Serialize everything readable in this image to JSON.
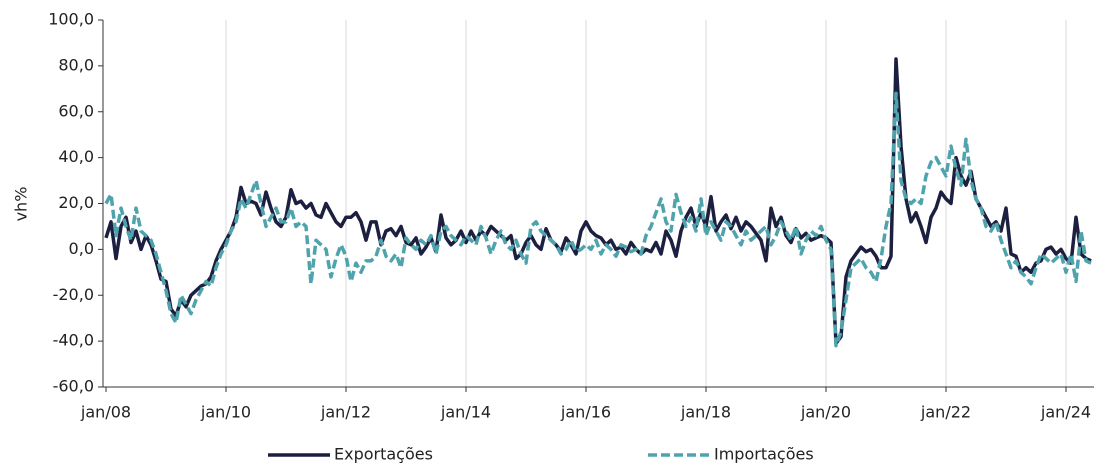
{
  "chart_data": {
    "type": "line",
    "y_label": "vh%",
    "categories": [
      "jan/08",
      null,
      null,
      null,
      null,
      null,
      null,
      null,
      null,
      null,
      null,
      null,
      null,
      null,
      null,
      null,
      null,
      null,
      null,
      null,
      null,
      null,
      null,
      null,
      "jan/10",
      null,
      null,
      null,
      null,
      null,
      null,
      null,
      null,
      null,
      null,
      null,
      null,
      null,
      null,
      null,
      null,
      null,
      null,
      null,
      null,
      null,
      null,
      null,
      "jan/12",
      null,
      null,
      null,
      null,
      null,
      null,
      null,
      null,
      null,
      null,
      null,
      null,
      null,
      null,
      null,
      null,
      null,
      null,
      null,
      null,
      null,
      null,
      null,
      "jan/14",
      null,
      null,
      null,
      null,
      null,
      null,
      null,
      null,
      null,
      null,
      null,
      null,
      null,
      null,
      null,
      null,
      null,
      null,
      null,
      null,
      null,
      null,
      null,
      "jan/16",
      null,
      null,
      null,
      null,
      null,
      null,
      null,
      null,
      null,
      null,
      null,
      null,
      null,
      null,
      null,
      null,
      null,
      null,
      null,
      null,
      null,
      null,
      null,
      "jan/18",
      null,
      null,
      null,
      null,
      null,
      null,
      null,
      null,
      null,
      null,
      null,
      null,
      null,
      null,
      null,
      null,
      null,
      null,
      null,
      null,
      null,
      null,
      null,
      "jan/20",
      null,
      null,
      null,
      null,
      null,
      null,
      null,
      null,
      null,
      null,
      null,
      null,
      null,
      null,
      null,
      null,
      null,
      null,
      null,
      null,
      null,
      null,
      null,
      "jan/22",
      null,
      null,
      null,
      null,
      null,
      null,
      null,
      null,
      null,
      null,
      null,
      null,
      null,
      null,
      null,
      null,
      null,
      null,
      null,
      null,
      null,
      null,
      null,
      "jan/24",
      null,
      null,
      null,
      null,
      null
    ],
    "series": [
      {
        "name": "Exportações",
        "color": "#1c1f3f",
        "dash": false,
        "values": [
          5,
          12,
          -4,
          10,
          14,
          3,
          8,
          0,
          6,
          2,
          -5,
          -13,
          -14,
          -26,
          -29,
          -22,
          -25,
          -20,
          -18,
          -16,
          -15,
          -12,
          -5,
          0,
          4,
          8,
          14,
          27,
          20,
          21,
          20,
          15,
          25,
          18,
          12,
          10,
          14,
          26,
          20,
          21,
          18,
          20,
          15,
          14,
          20,
          16,
          12,
          10,
          14,
          14,
          16,
          12,
          4,
          12,
          12,
          2,
          8,
          9,
          6,
          10,
          3,
          2,
          5,
          -2,
          1,
          5,
          -1,
          15,
          5,
          2,
          4,
          8,
          3,
          8,
          4,
          8,
          6,
          10,
          8,
          6,
          4,
          6,
          -4,
          -2,
          3,
          6,
          2,
          0,
          9,
          4,
          2,
          -1,
          5,
          2,
          -2,
          8,
          12,
          8,
          6,
          5,
          2,
          4,
          0,
          1,
          -2,
          3,
          0,
          -2,
          0,
          -1,
          3,
          -2,
          8,
          4,
          -3,
          8,
          14,
          18,
          10,
          16,
          10,
          23,
          8,
          12,
          15,
          9,
          14,
          8,
          12,
          10,
          7,
          4,
          -5,
          18,
          10,
          14,
          6,
          3,
          9,
          5,
          7,
          4,
          5,
          6,
          5,
          3,
          -41,
          -38,
          -12,
          -5,
          -2,
          1,
          -1,
          0,
          -3,
          -8,
          -8,
          -3,
          83,
          45,
          22,
          12,
          16,
          10,
          3,
          14,
          18,
          25,
          22,
          20,
          40,
          32,
          28,
          34,
          22,
          18,
          14,
          10,
          12,
          8,
          18,
          -2,
          -3,
          -10,
          -8,
          -10,
          -6,
          -5,
          0,
          1,
          -2,
          0,
          -4,
          -6,
          14,
          -2,
          -4,
          -5
        ]
      },
      {
        "name": "Importações",
        "color": "#4fa3ac",
        "dash": true,
        "values": [
          20,
          24,
          6,
          18,
          10,
          4,
          18,
          8,
          6,
          4,
          -2,
          -10,
          -18,
          -28,
          -32,
          -20,
          -24,
          -28,
          -22,
          -18,
          -14,
          -16,
          -8,
          -2,
          2,
          8,
          12,
          22,
          18,
          24,
          30,
          20,
          10,
          14,
          18,
          12,
          12,
          18,
          10,
          12,
          10,
          -15,
          4,
          2,
          0,
          -12,
          -4,
          2,
          -3,
          -14,
          -6,
          -10,
          -5,
          -5,
          -3,
          4,
          -3,
          -5,
          -2,
          -8,
          5,
          2,
          0,
          4,
          2,
          6,
          -2,
          8,
          10,
          6,
          4,
          2,
          6,
          4,
          2,
          10,
          5,
          -2,
          4,
          8,
          2,
          0,
          4,
          -2,
          -6,
          10,
          12,
          8,
          6,
          4,
          2,
          -2,
          0,
          4,
          -1,
          0,
          2,
          0,
          4,
          -2,
          2,
          0,
          -3,
          2,
          1,
          -1,
          0,
          -2,
          6,
          10,
          16,
          22,
          12,
          8,
          24,
          16,
          10,
          14,
          8,
          22,
          6,
          12,
          8,
          4,
          12,
          10,
          6,
          2,
          8,
          4,
          6,
          8,
          10,
          2,
          6,
          12,
          8,
          4,
          10,
          -2,
          4,
          8,
          6,
          10,
          4,
          0,
          -42,
          -36,
          -22,
          -8,
          -6,
          -4,
          -8,
          -10,
          -14,
          -4,
          10,
          20,
          68,
          30,
          22,
          20,
          22,
          20,
          32,
          38,
          40,
          36,
          32,
          45,
          35,
          28,
          48,
          30,
          22,
          18,
          10,
          8,
          12,
          4,
          -2,
          -8,
          -5,
          -10,
          -12,
          -15,
          -8,
          -2,
          -4,
          -6,
          -4,
          -2,
          -10,
          -2,
          -14,
          8,
          -5,
          -6
        ]
      }
    ],
    "ylim": [
      -60,
      100
    ],
    "yticks": [
      {
        "value": -60,
        "label": "-60,0"
      },
      {
        "value": -40,
        "label": "-40,0"
      },
      {
        "value": -20,
        "label": "-20,0"
      },
      {
        "value": 0,
        "label": "0,0"
      },
      {
        "value": 20,
        "label": "20,0"
      },
      {
        "value": 40,
        "label": "40,0"
      },
      {
        "value": 60,
        "label": "60,0"
      },
      {
        "value": 80,
        "label": "80,0"
      },
      {
        "value": 100,
        "label": "100,0"
      }
    ],
    "grid": true,
    "legend": "bottom"
  }
}
